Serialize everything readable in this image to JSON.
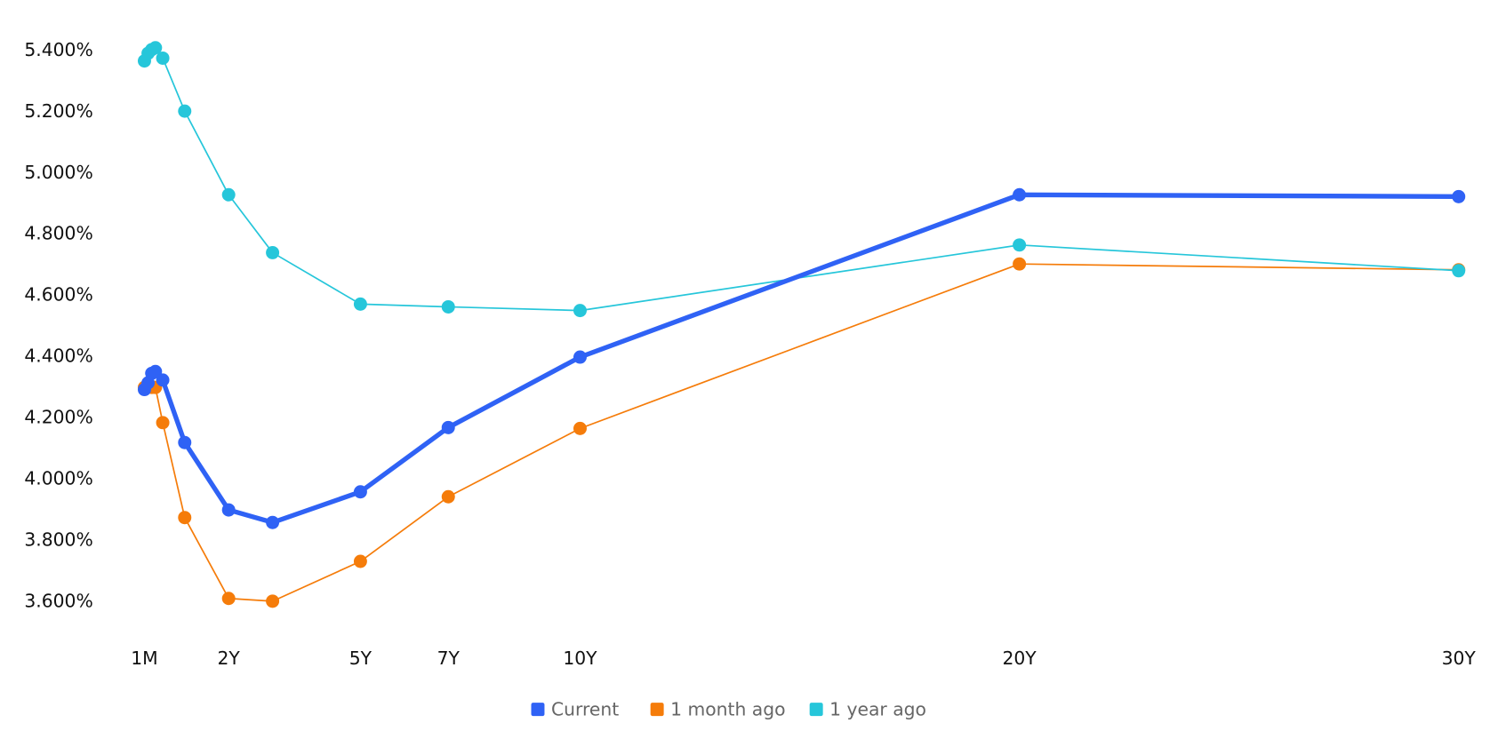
{
  "chart_data": {
    "type": "line",
    "x": [
      0.0833,
      0.1667,
      0.25,
      0.3333,
      0.5,
      1,
      2,
      3,
      5,
      7,
      10,
      20,
      30
    ],
    "xlim": [
      0.0833,
      30
    ],
    "xticks": [
      {
        "value": 0.0833,
        "label": "1M"
      },
      {
        "value": 2,
        "label": "2Y"
      },
      {
        "value": 5,
        "label": "5Y"
      },
      {
        "value": 7,
        "label": "7Y"
      },
      {
        "value": 10,
        "label": "10Y"
      },
      {
        "value": 20,
        "label": "20Y"
      },
      {
        "value": 30,
        "label": "30Y"
      }
    ],
    "ylim": [
      3.5,
      5.5
    ],
    "yticks": [
      {
        "value": 3.6,
        "label": "3.600%"
      },
      {
        "value": 3.8,
        "label": "3.800%"
      },
      {
        "value": 4.0,
        "label": "4.000%"
      },
      {
        "value": 4.2,
        "label": "4.200%"
      },
      {
        "value": 4.4,
        "label": "4.400%"
      },
      {
        "value": 4.6,
        "label": "4.600%"
      },
      {
        "value": 4.8,
        "label": "4.800%"
      },
      {
        "value": 5.0,
        "label": "5.000%"
      },
      {
        "value": 5.2,
        "label": "5.200%"
      },
      {
        "value": 5.4,
        "label": "5.400%"
      }
    ],
    "grid": false,
    "legend": "bottom",
    "series": [
      {
        "name": "Current",
        "color": "#2f62f5",
        "values": [
          4.293,
          4.315,
          4.346,
          4.352,
          4.324,
          4.12,
          3.9,
          3.859,
          3.959,
          4.169,
          4.399,
          4.929,
          4.923
        ]
      },
      {
        "name": "1 month ago",
        "color": "#f57c0a",
        "values": [
          4.3,
          4.31,
          4.3,
          4.3,
          4.185,
          3.875,
          3.611,
          3.602,
          3.732,
          3.943,
          4.166,
          4.703,
          4.684
        ]
      },
      {
        "name": "1 year ago",
        "color": "#26c6da",
        "values": [
          5.366,
          5.391,
          5.403,
          5.409,
          5.375,
          5.202,
          4.929,
          4.74,
          4.572,
          4.563,
          4.551,
          4.765,
          4.681
        ]
      }
    ]
  }
}
